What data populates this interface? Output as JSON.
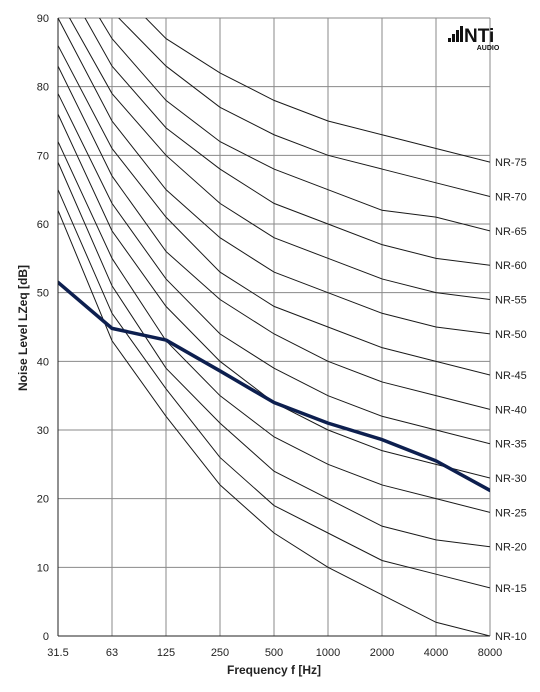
{
  "logo": {
    "brand": "NTi",
    "subtitle": "AUDIO"
  },
  "chart_data": {
    "type": "line",
    "title": "",
    "xlabel": "Frequency f [Hz]",
    "ylabel": "Noise Level LZeq [dB]",
    "x_scale": "log",
    "categories": [
      "31.5",
      "63",
      "125",
      "250",
      "500",
      "1000",
      "2000",
      "4000",
      "8000"
    ],
    "ylim": [
      0,
      90
    ],
    "yticks": [
      0,
      10,
      20,
      30,
      40,
      50,
      60,
      70,
      80,
      90
    ],
    "grid": true,
    "legend": "curve labels at right end",
    "reference_curves": [
      {
        "name": "NR-10",
        "values": [
          62,
          43,
          32,
          22,
          15,
          10,
          6,
          2,
          0
        ]
      },
      {
        "name": "NR-15",
        "values": [
          65,
          47,
          36,
          26,
          19,
          15,
          11,
          9,
          7
        ]
      },
      {
        "name": "NR-20",
        "values": [
          69,
          51,
          39,
          31,
          24,
          20,
          16,
          14,
          13
        ]
      },
      {
        "name": "NR-25",
        "values": [
          72,
          55,
          43,
          35,
          29,
          25,
          22,
          20,
          18
        ]
      },
      {
        "name": "NR-30",
        "values": [
          76,
          59,
          48,
          40,
          34,
          30,
          27,
          25,
          23
        ]
      },
      {
        "name": "NR-35",
        "values": [
          79,
          63,
          52,
          44,
          39,
          35,
          32,
          30,
          28
        ]
      },
      {
        "name": "NR-40",
        "values": [
          83,
          67,
          56,
          49,
          44,
          40,
          37,
          35,
          33
        ]
      },
      {
        "name": "NR-45",
        "values": [
          86,
          71,
          61,
          53,
          48,
          45,
          42,
          40,
          38
        ]
      },
      {
        "name": "NR-50",
        "values": [
          90,
          75,
          65,
          58,
          53,
          50,
          47,
          45,
          44
        ]
      },
      {
        "name": "NR-55",
        "values": [
          93,
          79,
          70,
          63,
          58,
          55,
          52,
          50,
          49
        ]
      },
      {
        "name": "NR-60",
        "values": [
          97,
          83,
          74,
          68,
          63,
          60,
          57,
          55,
          54
        ]
      },
      {
        "name": "NR-65",
        "values": [
          100,
          87,
          78,
          72,
          68,
          65,
          62,
          61,
          59
        ]
      },
      {
        "name": "NR-70",
        "values": [
          104,
          91,
          83,
          77,
          73,
          70,
          68,
          66,
          64
        ]
      },
      {
        "name": "NR-75",
        "values": [
          107,
          95,
          87,
          82,
          78,
          75,
          73,
          71,
          69
        ]
      }
    ],
    "measurement": {
      "values": [
        51.5,
        44.8,
        43.1,
        38.6,
        34.0,
        31.0,
        28.6,
        25.5,
        21.2
      ],
      "color": "#0d1f4f"
    }
  }
}
